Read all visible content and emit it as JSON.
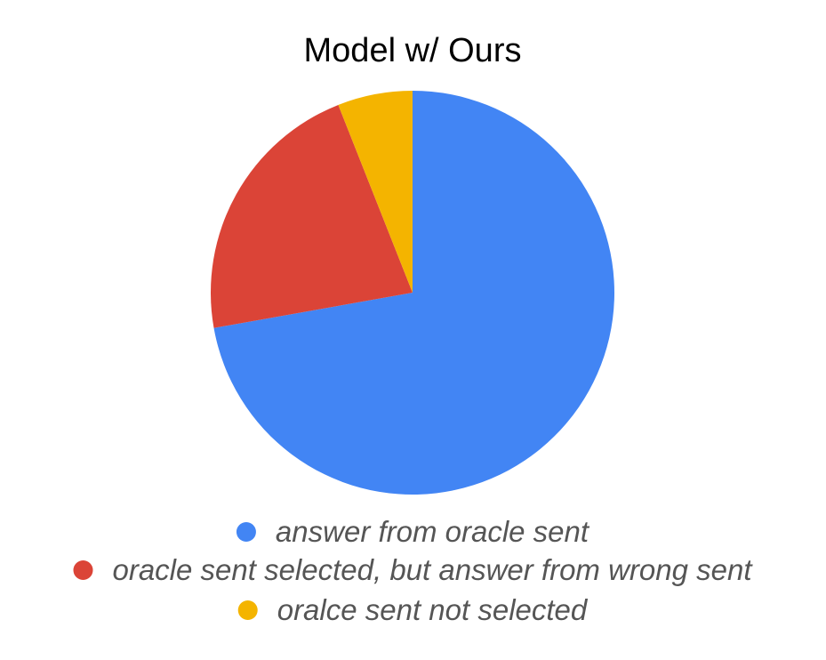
{
  "chart_data": {
    "type": "pie",
    "title": "Model w/ Ours",
    "legend_position": "bottom",
    "slices": [
      {
        "label": "answer from oracle sent",
        "value": 72.2,
        "color": "#4285f4"
      },
      {
        "label": "oracle sent selected, but answer from wrong sent",
        "value": 21.8,
        "color": "#db4437"
      },
      {
        "label": "oralce sent not selected",
        "value": 6.0,
        "color": "#f4b400"
      }
    ]
  }
}
